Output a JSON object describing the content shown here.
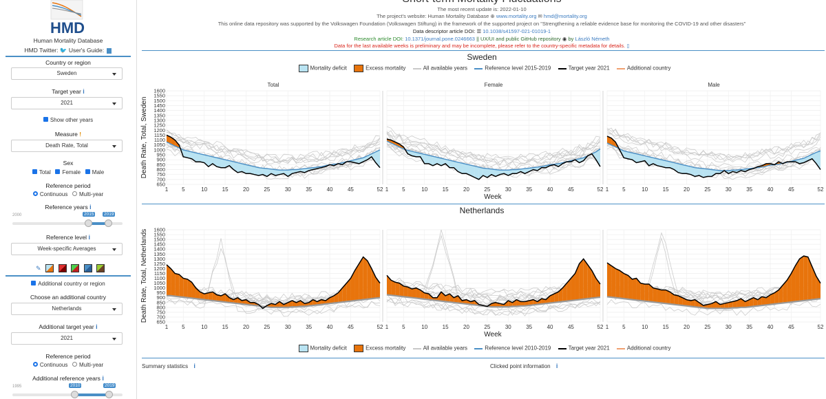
{
  "app": {
    "logo_text": "HMD",
    "logo_caption": "Human Mortality Database",
    "title": "Short-term Mortality Fluctuations"
  },
  "header": {
    "update": "The most recent update is: 2022-01-10",
    "website_prefix": "The project's website: Human Mortality Database",
    "website_link": "www.mortality.org",
    "email": "hmd@mortality.org",
    "funding": "This online data repository was supported by the Volkswagen Foundation (Volkswagen Stiftung) in the framework of the supported project on \"Strengthening a reliable evidence base for monitoring the COVID-19 and other disasters\"",
    "data_doi_prefix": "Data descriptor article DOI:",
    "data_doi": "10.1038/s41597-021-01019-1",
    "research_prefix": "Research article DOI:",
    "research_doi": "10.1371/journal.pone.0246663",
    "ux_text": "|| UX/UI and public GitHub repository",
    "by": "by",
    "author": "László Németh",
    "warning": "Data for the last available weeks is preliminary and may be incomplete, please refer to the country-specific metadata for details."
  },
  "sidebar": {
    "twitter_label": "HMD Twitter:",
    "guide_label": "User's Guide:",
    "country_label": "Country or region",
    "country_value": "Sweden",
    "target_year_label": "Target year",
    "target_year_value": "2021",
    "show_other_years": "Show other years",
    "measure_label": "Measure",
    "measure_value": "Death Rate, Total",
    "sex_label": "Sex",
    "sex_total": "Total",
    "sex_female": "Female",
    "sex_male": "Male",
    "ref_period_label": "Reference period",
    "ref_continuous": "Continuous",
    "ref_multiyear": "Multi-year",
    "ref_years_label": "Reference years",
    "ref_years_min": "2000",
    "ref_years_from": "2015",
    "ref_years_to": "2019",
    "ref_level_label": "Reference level",
    "ref_level_value": "Week-specific Averages",
    "additional_country_check": "Additional country or region",
    "choose_additional_label": "Choose an additional country",
    "additional_country_value": "Netherlands",
    "add_target_year_label": "Additional target year",
    "add_target_year_value": "2021",
    "add_ref_period_label": "Reference period",
    "add_ref_continuous": "Continuous",
    "add_ref_multiyear": "Multi-year",
    "add_ref_years_label": "Additional reference years",
    "add_ref_years_min": "1995",
    "add_ref_years_from": "2010",
    "add_ref_years_to": "2019"
  },
  "colors": {
    "deficit": "#b9e3f2",
    "excess": "#e8740c",
    "target": "#000000",
    "reference": "#4a8fc6",
    "others": "#c8c8c8",
    "accent": "#4a8fc6"
  },
  "legend_top": {
    "deficit": "Mortality deficit",
    "excess": "Excess mortality",
    "all_years": "All available years",
    "reference": "Reference level 2015-2019",
    "target": "Target year 2021",
    "additional": "Additional country"
  },
  "legend_bottom": {
    "deficit": "Mortality deficit",
    "excess": "Excess mortality",
    "all_years": "All available years",
    "reference": "Reference level 2010-2019",
    "target": "Target year 2021",
    "additional": "Additional country"
  },
  "footer": {
    "summary": "Summary statistics",
    "clicked": "Clicked point information"
  },
  "chart_data": [
    {
      "type": "line",
      "country": "Sweden",
      "ylabel": "Death Rate, Total, Sweden",
      "xlabel": "Week",
      "ylim": [
        650,
        1600
      ],
      "xlim": [
        1,
        52
      ],
      "yticks": [
        "650",
        "700",
        "750",
        "800",
        "850",
        "900",
        "950",
        "1000",
        "1050",
        "1100",
        "1150",
        "1200",
        "1250",
        "1300",
        "1350",
        "1400",
        "1450",
        "1500",
        "1550",
        "1600"
      ],
      "xticks": [
        "1",
        "5",
        "10",
        "15",
        "20",
        "25",
        "30",
        "35",
        "40",
        "45",
        "52"
      ],
      "panels": [
        {
          "title": "Total",
          "reference": [
            1080,
            1060,
            1040,
            1020,
            1000,
            990,
            980,
            970,
            960,
            950,
            940,
            930,
            920,
            910,
            900,
            890,
            880,
            870,
            860,
            850,
            840,
            830,
            820,
            815,
            810,
            805,
            800,
            795,
            795,
            795,
            800,
            800,
            805,
            810,
            815,
            820,
            825,
            830,
            840,
            850,
            855,
            860,
            870,
            880,
            890,
            900,
            910,
            920,
            940,
            960,
            980,
            1000
          ],
          "target": [
            1150,
            1130,
            1100,
            1050,
            930,
            920,
            910,
            880,
            880,
            870,
            830,
            860,
            830,
            820,
            820,
            840,
            800,
            770,
            780,
            760,
            760,
            750,
            740,
            750,
            730,
            760,
            740,
            750,
            760,
            730,
            760,
            770,
            780,
            770,
            790,
            800,
            810,
            820,
            830,
            850,
            840,
            860,
            850,
            880,
            880,
            870,
            860,
            880,
            900,
            930,
            870,
            820
          ]
        },
        {
          "title": "Female",
          "reference": [
            1090,
            1070,
            1050,
            1030,
            1010,
            995,
            985,
            975,
            965,
            955,
            945,
            935,
            925,
            915,
            905,
            895,
            885,
            875,
            865,
            855,
            845,
            835,
            825,
            815,
            810,
            805,
            800,
            795,
            795,
            795,
            800,
            800,
            805,
            810,
            815,
            820,
            825,
            830,
            840,
            850,
            855,
            860,
            870,
            880,
            890,
            900,
            910,
            920,
            940,
            960,
            980,
            1010
          ],
          "target": [
            1110,
            1100,
            1080,
            1060,
            1030,
            960,
            940,
            930,
            930,
            860,
            860,
            840,
            860,
            840,
            860,
            820,
            820,
            780,
            760,
            760,
            740,
            720,
            700,
            740,
            720,
            750,
            730,
            750,
            760,
            740,
            760,
            760,
            780,
            760,
            780,
            800,
            790,
            820,
            820,
            840,
            850,
            830,
            860,
            880,
            880,
            900,
            870,
            890,
            940,
            960,
            900,
            830
          ]
        },
        {
          "title": "Male",
          "reference": [
            1070,
            1050,
            1030,
            1010,
            990,
            980,
            970,
            960,
            950,
            940,
            930,
            920,
            910,
            900,
            890,
            880,
            870,
            860,
            850,
            840,
            830,
            820,
            815,
            810,
            805,
            800,
            795,
            790,
            790,
            790,
            795,
            795,
            800,
            805,
            810,
            815,
            820,
            825,
            835,
            845,
            850,
            855,
            865,
            875,
            885,
            895,
            905,
            915,
            935,
            955,
            975,
            990
          ],
          "target": [
            1140,
            1120,
            1080,
            1000,
            920,
            910,
            900,
            870,
            880,
            890,
            840,
            860,
            840,
            830,
            820,
            820,
            800,
            770,
            760,
            760,
            750,
            730,
            740,
            720,
            730,
            730,
            760,
            760,
            790,
            760,
            780,
            770,
            790,
            780,
            800,
            810,
            830,
            840,
            860,
            860,
            850,
            880,
            860,
            880,
            880,
            880,
            860,
            870,
            890,
            910,
            860,
            800
          ]
        }
      ]
    },
    {
      "type": "line",
      "country": "Netherlands",
      "ylabel": "Death Rate, Total, Netherlands",
      "xlabel": "Week",
      "ylim": [
        650,
        1600
      ],
      "xlim": [
        1,
        52
      ],
      "yticks": [
        "650",
        "700",
        "750",
        "800",
        "850",
        "900",
        "950",
        "1000",
        "1050",
        "1100",
        "1150",
        "1200",
        "1250",
        "1300",
        "1350",
        "1400",
        "1450",
        "1500",
        "1550",
        "1600"
      ],
      "xticks": [
        "1",
        "5",
        "10",
        "15",
        "20",
        "25",
        "30",
        "35",
        "40",
        "45",
        "52"
      ],
      "panels": [
        {
          "title": "",
          "reference": [
            920,
            920,
            915,
            910,
            905,
            900,
            895,
            890,
            885,
            880,
            875,
            870,
            865,
            860,
            855,
            850,
            845,
            840,
            835,
            830,
            825,
            820,
            815,
            810,
            805,
            800,
            800,
            800,
            800,
            800,
            805,
            805,
            810,
            810,
            815,
            820,
            825,
            830,
            835,
            840,
            845,
            850,
            855,
            860,
            865,
            870,
            875,
            880,
            885,
            890,
            895,
            900
          ],
          "target": [
            1240,
            1200,
            1150,
            1140,
            1100,
            1090,
            1060,
            1000,
            960,
            940,
            950,
            960,
            930,
            920,
            940,
            900,
            880,
            900,
            870,
            880,
            850,
            850,
            830,
            790,
            820,
            840,
            830,
            860,
            830,
            850,
            870,
            850,
            870,
            840,
            850,
            880,
            860,
            880,
            870,
            900,
            920,
            950,
            1000,
            1050,
            1100,
            1180,
            1250,
            1320,
            1280,
            1200,
            1110,
            1050
          ]
        },
        {
          "title": "",
          "reference": [
            930,
            925,
            920,
            915,
            910,
            905,
            900,
            895,
            890,
            885,
            880,
            875,
            870,
            865,
            860,
            855,
            850,
            845,
            840,
            835,
            830,
            825,
            820,
            815,
            810,
            805,
            805,
            805,
            805,
            805,
            810,
            810,
            815,
            815,
            820,
            825,
            830,
            835,
            840,
            845,
            850,
            855,
            860,
            865,
            870,
            875,
            880,
            885,
            890,
            895,
            900,
            905
          ],
          "target": [
            1130,
            1080,
            1060,
            1050,
            1020,
            1010,
            990,
            1000,
            980,
            950,
            940,
            900,
            900,
            960,
            920,
            940,
            900,
            920,
            870,
            880,
            860,
            870,
            830,
            820,
            810,
            840,
            850,
            840,
            830,
            870,
            850,
            880,
            860,
            860,
            870,
            880,
            860,
            890,
            880,
            920,
            940,
            960,
            1000,
            1050,
            1100,
            1150,
            1250,
            1300,
            1240,
            1180,
            1100,
            1040
          ]
        },
        {
          "title": "",
          "reference": [
            910,
            905,
            900,
            895,
            890,
            885,
            880,
            875,
            870,
            865,
            860,
            855,
            850,
            845,
            840,
            835,
            830,
            825,
            820,
            815,
            810,
            805,
            800,
            795,
            790,
            790,
            790,
            790,
            790,
            790,
            795,
            795,
            800,
            800,
            805,
            810,
            815,
            820,
            825,
            830,
            835,
            840,
            845,
            850,
            855,
            860,
            865,
            870,
            875,
            880,
            885,
            890
          ],
          "target": [
            1260,
            1230,
            1200,
            1180,
            1150,
            1130,
            1090,
            1100,
            1050,
            1040,
            1040,
            1000,
            990,
            980,
            980,
            960,
            930,
            920,
            900,
            880,
            870,
            880,
            850,
            820,
            830,
            840,
            860,
            830,
            840,
            850,
            860,
            870,
            890,
            860,
            880,
            900,
            880,
            910,
            900,
            930,
            950,
            980,
            1030,
            1080,
            1150,
            1230,
            1300,
            1330,
            1320,
            1220,
            1120,
            1050
          ]
        }
      ]
    }
  ]
}
